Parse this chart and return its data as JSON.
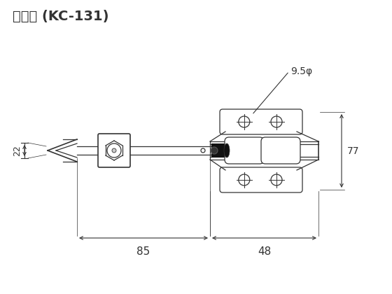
{
  "title": "寸法図 (KC-131)",
  "bg_color": "#ffffff",
  "line_color": "#333333",
  "figsize": [
    5.6,
    4.2
  ],
  "dpi": 100,
  "annotations": {
    "dim_85": "85",
    "dim_48": "48",
    "dim_22": "22",
    "dim_77": "77",
    "dim_phi": "9.5φ"
  }
}
